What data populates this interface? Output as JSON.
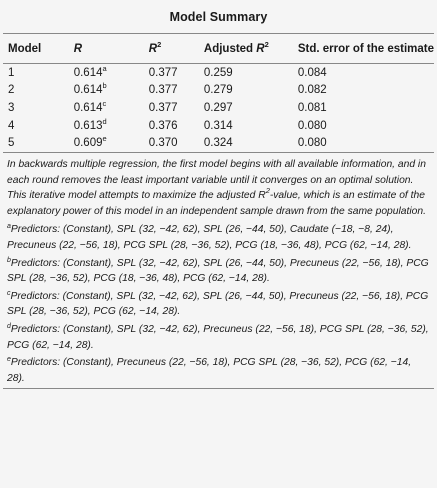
{
  "title": "Model Summary",
  "columns": {
    "model": "Model",
    "r": "R",
    "r2_base": "R",
    "r2_sup": "2",
    "adj_prefix": "Adjusted ",
    "adj_base": "R",
    "adj_sup": "2",
    "se": "Std. error of the estimate"
  },
  "rows": [
    {
      "model": "1",
      "r": "0.614",
      "r_sup": "a",
      "r2": "0.377",
      "adj": "0.259",
      "se": "0.084"
    },
    {
      "model": "2",
      "r": "0.614",
      "r_sup": "b",
      "r2": "0.377",
      "adj": "0.279",
      "se": "0.082"
    },
    {
      "model": "3",
      "r": "0.614",
      "r_sup": "c",
      "r2": "0.377",
      "adj": "0.297",
      "se": "0.081"
    },
    {
      "model": "4",
      "r": "0.613",
      "r_sup": "d",
      "r2": "0.376",
      "adj": "0.314",
      "se": "0.080"
    },
    {
      "model": "5",
      "r": "0.609",
      "r_sup": "e",
      "r2": "0.370",
      "adj": "0.324",
      "se": "0.080"
    }
  ],
  "note": {
    "pre": "In backwards multiple regression, the first model begins with all available information, and in each round removes the least important variable until it converges on an optimal solution. This iterative model attempts to maximize the adjusted ",
    "r": "R",
    "sup": "2",
    "post": "-value, which is an estimate of the explanatory power of this model in an independent sample drawn from the same population."
  },
  "footnotes": [
    {
      "mark": "a",
      "text": "Predictors: (Constant), SPL (32, −42, 62), SPL (26, −44, 50), Caudate (−18, −8, 24), Precuneus (22, −56, 18), PCG SPL (28, −36, 52), PCG (18, −36, 48), PCG (62, −14, 28)."
    },
    {
      "mark": "b",
      "text": "Predictors: (Constant), SPL (32, −42, 62), SPL (26, −44, 50), Precuneus (22, −56, 18), PCG SPL (28, −36, 52), PCG (18, −36, 48), PCG (62, −14, 28)."
    },
    {
      "mark": "c",
      "text": "Predictors: (Constant), SPL (32, −42, 62), SPL (26, −44, 50), Precuneus (22, −56, 18), PCG SPL (28, −36, 52), PCG (62, −14, 28)."
    },
    {
      "mark": "d",
      "text": "Predictors: (Constant), SPL (32, −42, 62), Precuneus (22, −56, 18), PCG SPL (28, −36, 52), PCG (62, −14, 28)."
    },
    {
      "mark": "e",
      "text": "Predictors: (Constant), Precuneus (22, −56, 18), PCG SPL (28, −36, 52), PCG (62, −14, 28)."
    }
  ]
}
